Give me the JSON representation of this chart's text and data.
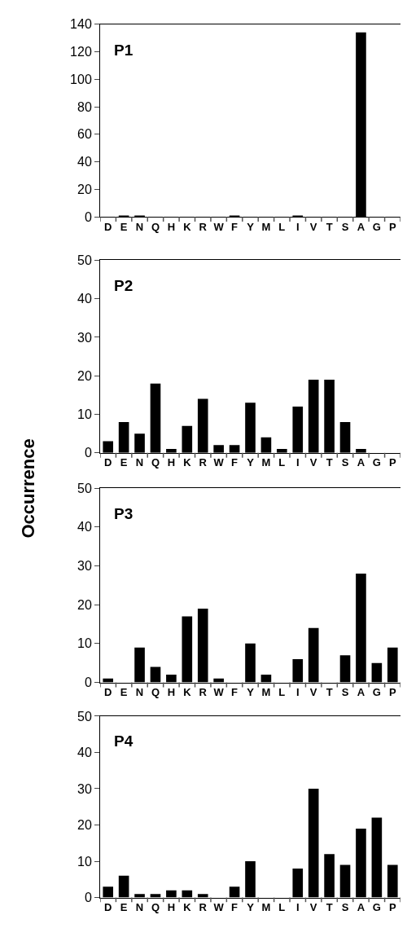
{
  "chart_data": [
    {
      "type": "bar",
      "title": "P1",
      "categories": [
        "D",
        "E",
        "N",
        "Q",
        "H",
        "K",
        "R",
        "W",
        "F",
        "Y",
        "M",
        "L",
        "I",
        "V",
        "T",
        "S",
        "A",
        "G",
        "P"
      ],
      "values": [
        0,
        1,
        1,
        0,
        0,
        0,
        0,
        0,
        1,
        0,
        0,
        0,
        1,
        0,
        0,
        0,
        134,
        0,
        0
      ],
      "color": "#000000",
      "ylim": [
        0,
        140
      ],
      "yticks": [
        0,
        20,
        40,
        60,
        80,
        100,
        120,
        140
      ]
    },
    {
      "type": "bar",
      "title": "P2",
      "ylabel": "Occurrence",
      "categories": [
        "D",
        "E",
        "N",
        "Q",
        "H",
        "K",
        "R",
        "W",
        "F",
        "Y",
        "M",
        "L",
        "I",
        "V",
        "T",
        "S",
        "A",
        "G",
        "P"
      ],
      "values": [
        3,
        8,
        5,
        18,
        1,
        7,
        14,
        2,
        2,
        13,
        4,
        1,
        12,
        19,
        19,
        8,
        1,
        0,
        0
      ],
      "color": "#000000",
      "ylim": [
        0,
        50
      ],
      "yticks": [
        0,
        10,
        20,
        30,
        40,
        50
      ]
    },
    {
      "type": "bar",
      "title": "P3",
      "categories": [
        "D",
        "E",
        "N",
        "Q",
        "H",
        "K",
        "R",
        "W",
        "F",
        "Y",
        "M",
        "L",
        "I",
        "V",
        "T",
        "S",
        "A",
        "G",
        "P"
      ],
      "values": [
        1,
        0,
        9,
        4,
        2,
        17,
        19,
        1,
        0,
        10,
        2,
        0,
        6,
        14,
        0,
        7,
        28,
        5,
        9
      ],
      "color": "#000000",
      "ylim": [
        0,
        50
      ],
      "yticks": [
        0,
        10,
        20,
        30,
        40,
        50
      ]
    },
    {
      "type": "bar",
      "title": "P4",
      "categories": [
        "D",
        "E",
        "N",
        "Q",
        "H",
        "K",
        "R",
        "W",
        "F",
        "Y",
        "M",
        "L",
        "I",
        "V",
        "T",
        "S",
        "A",
        "G",
        "P"
      ],
      "values": [
        3,
        6,
        1,
        1,
        2,
        2,
        1,
        0,
        3,
        10,
        0,
        0,
        8,
        30,
        12,
        9,
        19,
        22,
        9
      ],
      "color": "#000000",
      "ylim": [
        0,
        50
      ],
      "yticks": [
        0,
        10,
        20,
        30,
        40,
        50
      ]
    }
  ]
}
